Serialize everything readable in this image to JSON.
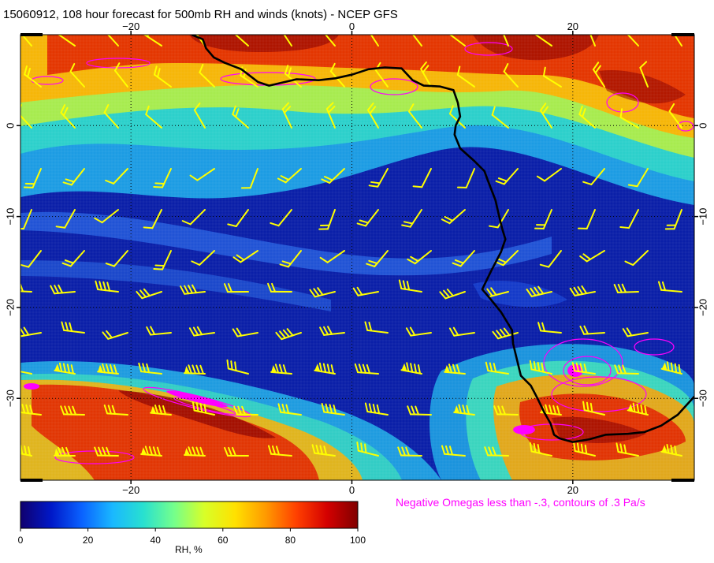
{
  "title": "15060912, 108 hour forecast for 500mb RH and winds (knots) - NCEP GFS",
  "omega_note": "Negative Omegas less than -.3, contours of .3 Pa/s",
  "colorbar": {
    "label": "RH, %",
    "ticks": [
      "0",
      "20",
      "40",
      "60",
      "80",
      "100"
    ],
    "colors": [
      "#10006e",
      "#0018c8",
      "#0a62ff",
      "#1ab8ff",
      "#28e0d0",
      "#74ff8c",
      "#d8ff28",
      "#ffe100",
      "#ff9a00",
      "#ff4000",
      "#d40000",
      "#800000"
    ]
  },
  "map": {
    "lon_range": [
      -30,
      31
    ],
    "lat_range": [
      -39,
      10
    ],
    "lon_ticks": [
      {
        "value": -20,
        "label": "−20"
      },
      {
        "value": 0,
        "label": "0"
      },
      {
        "value": 20,
        "label": "20"
      }
    ],
    "lat_ticks": [
      {
        "value": 0,
        "label": "0"
      },
      {
        "value": -10,
        "label": "−10"
      },
      {
        "value": -20,
        "label": "−20"
      },
      {
        "value": -30,
        "label": "−30"
      }
    ],
    "grid": "dotted"
  },
  "colors": {
    "barb": "#ffff00",
    "omega": "#ff00ff",
    "coast": "#000000"
  },
  "coastline": [
    [
      -14.5,
      10
    ],
    [
      -13.5,
      9.5
    ],
    [
      -13.2,
      8.5
    ],
    [
      -12.5,
      7.5
    ],
    [
      -11.5,
      6.9
    ],
    [
      -10,
      6.2
    ],
    [
      -8.5,
      4.8
    ],
    [
      -7.5,
      4.4
    ],
    [
      -5,
      5.1
    ],
    [
      -3,
      5.0
    ],
    [
      -1.5,
      5.2
    ],
    [
      0,
      5.6
    ],
    [
      1.5,
      6.2
    ],
    [
      3,
      6.4
    ],
    [
      4.5,
      6.3
    ],
    [
      5.5,
      5.0
    ],
    [
      6.5,
      4.4
    ],
    [
      8,
      4.3
    ],
    [
      9.2,
      3.9
    ],
    [
      9.6,
      2.5
    ],
    [
      9.8,
      1.0
    ],
    [
      9.4,
      0
    ],
    [
      9.3,
      -1
    ],
    [
      9.8,
      -2.5
    ],
    [
      11,
      -3.8
    ],
    [
      12,
      -5.0
    ],
    [
      12.3,
      -6
    ],
    [
      13.0,
      -8.2
    ],
    [
      13.3,
      -9.8
    ],
    [
      13.6,
      -11.3
    ],
    [
      13.9,
      -12.5
    ],
    [
      13.5,
      -13.9
    ],
    [
      12.6,
      -16.0
    ],
    [
      11.8,
      -18.0
    ],
    [
      12.5,
      -19.0
    ],
    [
      13.5,
      -20.5
    ],
    [
      14.5,
      -22.5
    ],
    [
      14.6,
      -24.0
    ],
    [
      15.0,
      -26.0
    ],
    [
      15.3,
      -27.5
    ],
    [
      16.2,
      -28.6
    ],
    [
      16.8,
      -30.0
    ],
    [
      17.4,
      -31.5
    ],
    [
      18.0,
      -32.8
    ],
    [
      18.3,
      -34.0
    ],
    [
      18.8,
      -34.4
    ],
    [
      20.0,
      -34.8
    ],
    [
      21.5,
      -34.5
    ],
    [
      23.0,
      -34.0
    ],
    [
      25.0,
      -33.9
    ],
    [
      26.5,
      -33.7
    ],
    [
      28.0,
      -33.0
    ],
    [
      29.5,
      -31.8
    ],
    [
      31.0,
      -29.8
    ]
  ]
}
